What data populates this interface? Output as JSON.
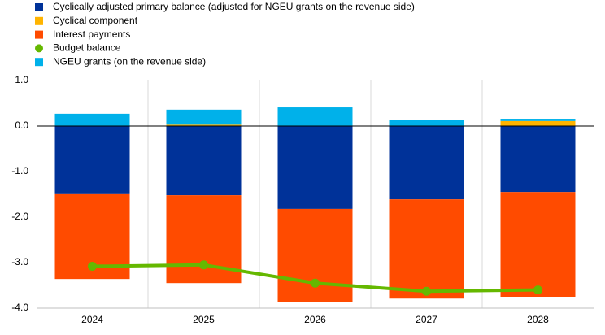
{
  "chart_data": {
    "type": "bar",
    "stacked": true,
    "categories": [
      "2024",
      "2025",
      "2026",
      "2027",
      "2028"
    ],
    "series": [
      {
        "name": "Cyclically adjusted primary balance (adjusted for NGEU grants on the revenue side)",
        "color": "#003299",
        "type": "bar",
        "values": [
          -1.48,
          -1.52,
          -1.82,
          -1.61,
          -1.45
        ]
      },
      {
        "name": "Cyclical component",
        "color": "#ffb400",
        "type": "bar",
        "values": [
          0,
          0.03,
          0,
          0,
          0.11
        ]
      },
      {
        "name": "Interest payments",
        "color": "#ff4b00",
        "type": "bar",
        "values": [
          -1.88,
          -1.93,
          -2.04,
          -2.18,
          -2.3
        ]
      },
      {
        "name": "Budget balance",
        "color": "#65b800",
        "type": "line",
        "values": [
          -3.08,
          -3.05,
          -3.45,
          -3.63,
          -3.6
        ]
      },
      {
        "name": "NGEU grants (on the revenue side)",
        "color": "#00b1ea",
        "type": "bar",
        "values": [
          0.27,
          0.33,
          0.41,
          0.13,
          0.05
        ]
      }
    ],
    "ylim": [
      -4,
      1
    ],
    "yticks": [
      {
        "value": 1,
        "label": "1.0"
      },
      {
        "value": 0,
        "label": "0.0"
      },
      {
        "value": -1,
        "label": "-1.0"
      },
      {
        "value": -2,
        "label": "-2.0"
      },
      {
        "value": -3,
        "label": "-3.0"
      },
      {
        "value": -4,
        "label": "-4.0"
      }
    ],
    "legend": "top-left"
  }
}
